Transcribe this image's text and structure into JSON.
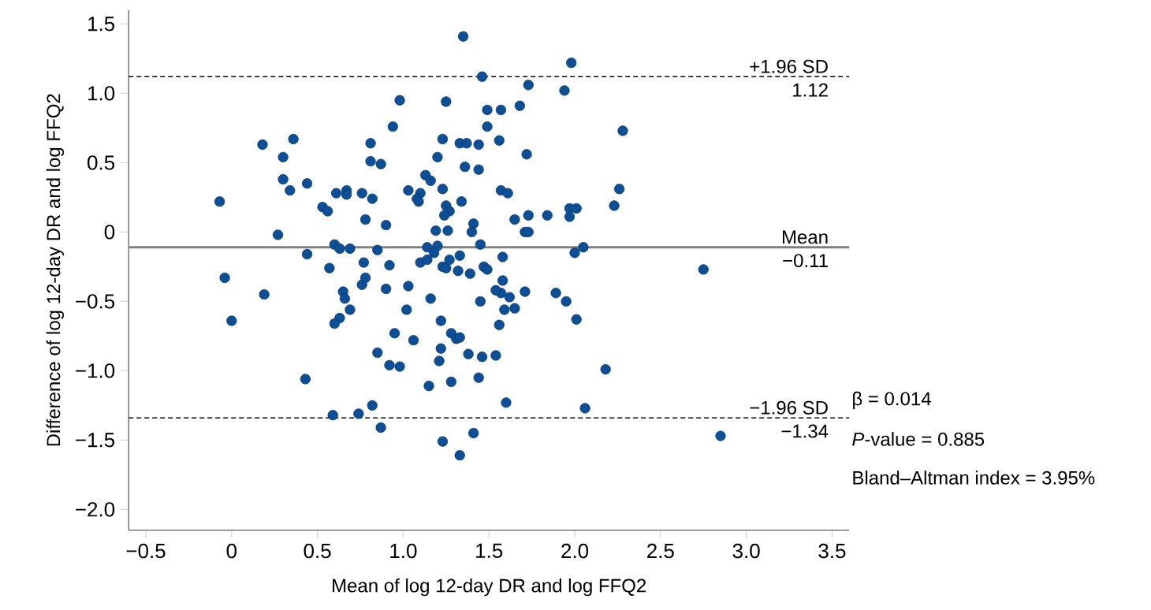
{
  "chart_data": {
    "type": "scatter",
    "xlabel": "Mean of log 12-day DR and log FFQ2",
    "ylabel": "Difference of log 12-day DR and log FFQ2",
    "xlim": [
      -0.6,
      3.6
    ],
    "ylim": [
      -2.15,
      1.6
    ],
    "xticks": [
      {
        "value": -0.5,
        "label": "−0.5"
      },
      {
        "value": 0,
        "label": "0"
      },
      {
        "value": 0.5,
        "label": "0.5"
      },
      {
        "value": 1,
        "label": "1.0"
      },
      {
        "value": 1.5,
        "label": "1.5"
      },
      {
        "value": 2,
        "label": "2.0"
      },
      {
        "value": 2.5,
        "label": "2.5"
      },
      {
        "value": 3,
        "label": "3.0"
      },
      {
        "value": 3.5,
        "label": "3.5"
      }
    ],
    "yticks": [
      {
        "value": -2,
        "label": "−2.0"
      },
      {
        "value": -1.5,
        "label": "−1.5"
      },
      {
        "value": -1,
        "label": "−1.0"
      },
      {
        "value": -0.5,
        "label": "−0.5"
      },
      {
        "value": 0,
        "label": "0"
      },
      {
        "value": 0.5,
        "label": "0.5"
      },
      {
        "value": 1,
        "label": "1.0"
      },
      {
        "value": 1.5,
        "label": "1.5"
      }
    ],
    "marker": "circle",
    "series": [
      {
        "color": "#0d4f97",
        "x": [
          -0.07,
          0.18,
          0.36,
          0.3,
          0.3,
          0.34,
          0.44,
          0.27,
          0.44,
          0.53,
          0.56,
          0.61,
          0.67,
          0.67,
          0.76,
          0.82,
          0.78,
          0.9,
          0.81,
          0.81,
          0.87,
          0.94,
          0.98,
          1.25,
          1.23,
          1.2,
          1.13,
          1.16,
          1.03,
          1.1,
          1.08,
          1.09,
          1.23,
          1.25,
          1.27,
          1.24,
          1.19,
          1.26,
          0.6,
          0.63,
          0.69,
          0.85,
          1.14,
          1.2,
          1.18,
          -0.04,
          0.0,
          0.19,
          0.57,
          0.77,
          0.78,
          0.76,
          0.92,
          1.1,
          1.14,
          1.23,
          1.25,
          1.27,
          0.65,
          0.66,
          0.69,
          0.63,
          0.6,
          0.9,
          1.03,
          1.16,
          1.02,
          1.22,
          0.95,
          1.06,
          1.28,
          0.85,
          1.22,
          1.21,
          0.92,
          0.98,
          0.43,
          1.15,
          1.28,
          0.82,
          0.59,
          0.74,
          0.87,
          1.23,
          1.35,
          1.46,
          1.98,
          1.73,
          1.94,
          1.49,
          1.57,
          1.68,
          1.49,
          2.28,
          1.33,
          1.37,
          1.44,
          1.56,
          1.36,
          1.44,
          1.72,
          1.57,
          1.61,
          1.34,
          2.26,
          2.23,
          1.97,
          2.01,
          1.97,
          1.84,
          1.73,
          1.65,
          1.71,
          1.73,
          1.41,
          1.4,
          1.45,
          1.33,
          1.58,
          2.0,
          2.05,
          1.32,
          1.39,
          1.47,
          1.49,
          1.58,
          2.75,
          1.57,
          1.54,
          1.62,
          1.71,
          1.45,
          1.59,
          1.65,
          1.89,
          1.95,
          2.01,
          1.56,
          1.31,
          1.33,
          1.38,
          1.46,
          1.54,
          1.44,
          2.18,
          1.6,
          2.06,
          1.41,
          1.33,
          2.85
        ],
        "values": [
          0.22,
          0.63,
          0.67,
          0.54,
          0.38,
          0.3,
          0.35,
          -0.02,
          -0.16,
          0.18,
          0.15,
          0.28,
          0.3,
          0.27,
          0.28,
          0.24,
          0.09,
          0.05,
          0.64,
          0.51,
          0.49,
          0.76,
          0.95,
          0.94,
          0.67,
          0.54,
          0.41,
          0.37,
          0.3,
          0.28,
          0.24,
          0.22,
          0.31,
          0.19,
          0.15,
          0.12,
          0.01,
          0.01,
          -0.09,
          -0.12,
          -0.12,
          -0.13,
          -0.11,
          -0.1,
          -0.15,
          -0.33,
          -0.64,
          -0.45,
          -0.26,
          -0.22,
          -0.33,
          -0.38,
          -0.24,
          -0.22,
          -0.2,
          -0.25,
          -0.26,
          -0.2,
          -0.43,
          -0.48,
          -0.56,
          -0.62,
          -0.66,
          -0.41,
          -0.39,
          -0.48,
          -0.56,
          -0.64,
          -0.73,
          -0.78,
          -0.73,
          -0.87,
          -0.84,
          -0.93,
          -0.96,
          -0.97,
          -1.06,
          -1.11,
          -1.08,
          -1.25,
          -1.32,
          -1.31,
          -1.41,
          -1.51,
          1.41,
          1.12,
          1.22,
          1.06,
          1.02,
          0.88,
          0.88,
          0.91,
          0.76,
          0.73,
          0.64,
          0.64,
          0.63,
          0.66,
          0.47,
          0.45,
          0.56,
          0.3,
          0.28,
          0.22,
          0.31,
          0.19,
          0.17,
          0.17,
          0.11,
          0.12,
          0.12,
          0.09,
          0.0,
          0.0,
          0.06,
          0.0,
          -0.09,
          -0.17,
          -0.18,
          -0.15,
          -0.11,
          -0.28,
          -0.3,
          -0.25,
          -0.27,
          -0.35,
          -0.27,
          -0.44,
          -0.42,
          -0.47,
          -0.43,
          -0.5,
          -0.56,
          -0.55,
          -0.44,
          -0.5,
          -0.63,
          -0.67,
          -0.77,
          -0.76,
          -0.88,
          -0.9,
          -0.89,
          -1.05,
          -0.99,
          -1.23,
          -1.27,
          -1.45,
          -1.61,
          -1.47
        ]
      }
    ],
    "ref_lines": [
      {
        "axis": "y",
        "value": 1.12,
        "label": "+1.96 SD",
        "color": "#000000",
        "line_style": "dashed"
      },
      {
        "axis": "y",
        "value": -0.11,
        "label": "Mean",
        "color": "#808080",
        "line_style": "solid"
      },
      {
        "axis": "y",
        "value": -1.34,
        "label": "−1.96 SD",
        "color": "#000000",
        "line_style": "dashed"
      }
    ],
    "annotations": [
      {
        "text": "1.12",
        "y": 1.12
      },
      {
        "text": "−0.11",
        "y": -0.11
      },
      {
        "text": "−1.34",
        "y": -1.34
      },
      "β = 0.014",
      "*P*-value = 0.885",
      "Bland–Altman index = 3.95%"
    ]
  }
}
